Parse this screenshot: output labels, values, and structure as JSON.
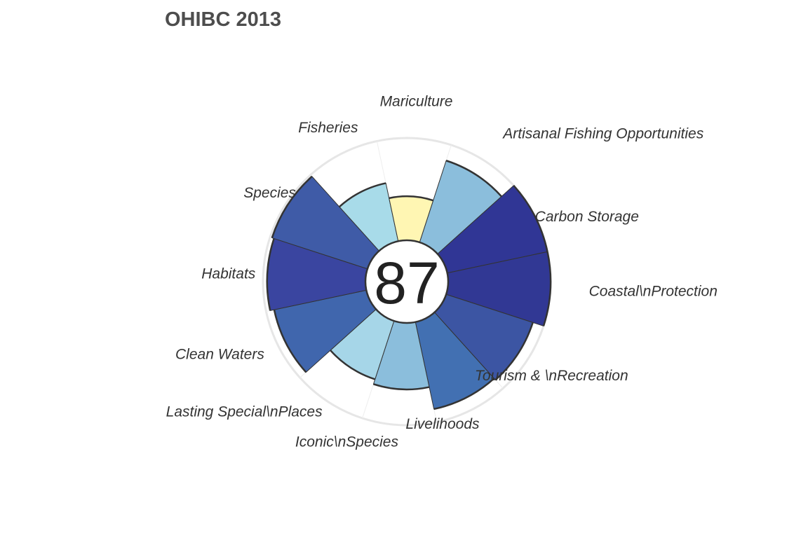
{
  "chart_data": {
    "type": "polar-bar",
    "title": "OHIBC 2013",
    "center_score": "87",
    "ylim": [
      0,
      100
    ],
    "outline_color": "#333333",
    "reference_ring_color": "#e6e6e6",
    "goals": [
      {
        "label": "Artisanal Fishing Opportunities",
        "value": 84,
        "color": "#8bbedc"
      },
      {
        "label": "Carbon Storage",
        "value": 100,
        "color": "#303695"
      },
      {
        "label": "Coastal\\nProtection",
        "value": 100,
        "color": "#313894"
      },
      {
        "label": "Tourism & \\nRecreation",
        "value": 89,
        "color": "#3c55a3"
      },
      {
        "label": "Livelihoods",
        "value": 87,
        "color": "#4270b2"
      },
      {
        "label": "Iconic\\nSpecies",
        "value": 65,
        "color": "#8bbedc"
      },
      {
        "label": "Lasting Special\\nPlaces",
        "value": 60,
        "color": "#a6d6e8"
      },
      {
        "label": "Clean Waters",
        "value": 92,
        "color": "#4066ad"
      },
      {
        "label": "Habitats",
        "value": 96,
        "color": "#3a45a0"
      },
      {
        "label": "Species",
        "value": 98,
        "color": "#3f5ba7"
      },
      {
        "label": "Fisheries",
        "value": 58,
        "color": "#a8dbe9"
      },
      {
        "label": "Mariculture",
        "value": 43,
        "color": "#fff6b3"
      }
    ]
  }
}
